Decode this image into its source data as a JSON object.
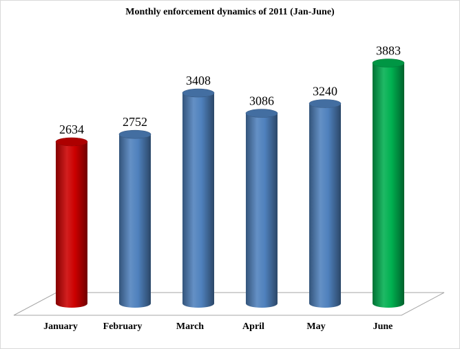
{
  "chart_data": {
    "type": "bar",
    "title": "Monthly enforcement dynamics of 2011 (Jan-June)",
    "categories": [
      "January",
      "February",
      "March",
      "April",
      "May",
      "June"
    ],
    "values": [
      2634,
      2752,
      3408,
      3086,
      3240,
      3883
    ],
    "data_labels": [
      "2634",
      "2752",
      "3408",
      "3086",
      "3240",
      "3883"
    ],
    "bar_colors": [
      "#cc0000",
      "#4f81bd",
      "#4f81bd",
      "#4f81bd",
      "#4f81bd",
      "#00b050"
    ],
    "xlabel": "",
    "ylabel": "",
    "grid": false,
    "legend": "none",
    "style": "3d-cylinder"
  }
}
